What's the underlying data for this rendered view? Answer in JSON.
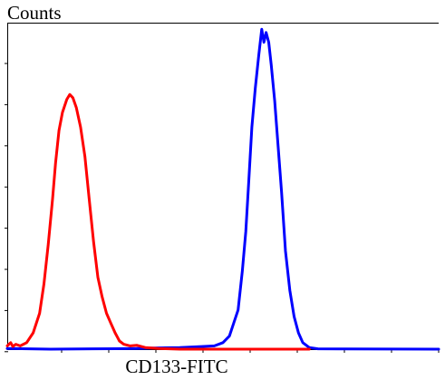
{
  "chart_data": {
    "type": "line",
    "title": "",
    "xlabel": "CD133-FITC",
    "ylabel": "Counts",
    "xlim": [
      0,
      1
    ],
    "ylim": [
      0,
      1
    ],
    "grid": false,
    "series": [
      {
        "name": "",
        "color": "#ff0000",
        "points": [
          [
            0.0,
            0.01
          ],
          [
            0.008,
            0.02
          ],
          [
            0.013,
            0.008
          ],
          [
            0.02,
            0.015
          ],
          [
            0.03,
            0.01
          ],
          [
            0.045,
            0.02
          ],
          [
            0.06,
            0.05
          ],
          [
            0.075,
            0.11
          ],
          [
            0.085,
            0.2
          ],
          [
            0.095,
            0.32
          ],
          [
            0.105,
            0.46
          ],
          [
            0.112,
            0.57
          ],
          [
            0.12,
            0.67
          ],
          [
            0.128,
            0.725
          ],
          [
            0.138,
            0.765
          ],
          [
            0.145,
            0.78
          ],
          [
            0.152,
            0.77
          ],
          [
            0.16,
            0.74
          ],
          [
            0.17,
            0.68
          ],
          [
            0.18,
            0.59
          ],
          [
            0.19,
            0.46
          ],
          [
            0.2,
            0.33
          ],
          [
            0.21,
            0.22
          ],
          [
            0.22,
            0.16
          ],
          [
            0.23,
            0.11
          ],
          [
            0.24,
            0.08
          ],
          [
            0.25,
            0.05
          ],
          [
            0.26,
            0.025
          ],
          [
            0.27,
            0.015
          ],
          [
            0.285,
            0.01
          ],
          [
            0.3,
            0.012
          ],
          [
            0.32,
            0.005
          ],
          [
            0.35,
            0.002
          ],
          [
            0.4,
            0.0
          ],
          [
            0.7,
            0.0
          ]
        ]
      },
      {
        "name": "",
        "color": "#0000ff",
        "points": [
          [
            0.0,
            0.002
          ],
          [
            0.1,
            0.0
          ],
          [
            0.2,
            0.001
          ],
          [
            0.3,
            0.002
          ],
          [
            0.35,
            0.004
          ],
          [
            0.4,
            0.005
          ],
          [
            0.45,
            0.008
          ],
          [
            0.48,
            0.01
          ],
          [
            0.5,
            0.02
          ],
          [
            0.515,
            0.04
          ],
          [
            0.525,
            0.08
          ],
          [
            0.535,
            0.12
          ],
          [
            0.545,
            0.24
          ],
          [
            0.553,
            0.36
          ],
          [
            0.56,
            0.52
          ],
          [
            0.567,
            0.68
          ],
          [
            0.575,
            0.8
          ],
          [
            0.583,
            0.9
          ],
          [
            0.59,
            0.98
          ],
          [
            0.595,
            0.94
          ],
          [
            0.6,
            0.97
          ],
          [
            0.606,
            0.94
          ],
          [
            0.612,
            0.87
          ],
          [
            0.62,
            0.76
          ],
          [
            0.628,
            0.62
          ],
          [
            0.636,
            0.48
          ],
          [
            0.645,
            0.3
          ],
          [
            0.655,
            0.18
          ],
          [
            0.665,
            0.1
          ],
          [
            0.675,
            0.05
          ],
          [
            0.685,
            0.02
          ],
          [
            0.7,
            0.005
          ],
          [
            0.72,
            0.001
          ],
          [
            1.0,
            0.0
          ]
        ]
      }
    ]
  }
}
